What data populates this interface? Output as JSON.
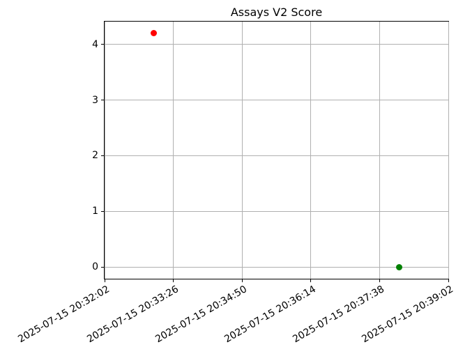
{
  "chart_data": {
    "type": "scatter",
    "title": "Assays V2 Score",
    "grid": true,
    "grid_color": "#b0b0b0",
    "background_color": "#ffffff",
    "xlim": [
      "2025-07-15 20:32:02",
      "2025-07-15 20:39:02"
    ],
    "ylim": [
      -0.21,
      4.41
    ],
    "x_tick_labels": [
      "2025-07-15 20:32:02",
      "2025-07-15 20:33:26",
      "2025-07-15 20:34:50",
      "2025-07-15 20:36:14",
      "2025-07-15 20:37:38",
      "2025-07-15 20:39:02"
    ],
    "x_tick_rotation_deg": 30,
    "y_tick_values": [
      0,
      1,
      2,
      3,
      4
    ],
    "y_tick_labels": [
      "0",
      "1",
      "2",
      "3",
      "4"
    ],
    "points": [
      {
        "name": "red-point",
        "x": "2025-07-15 20:33:02",
        "y": 4.2,
        "color": "#ff0000"
      },
      {
        "name": "green-point",
        "x": "2025-07-15 20:38:02",
        "y": 0.0,
        "color": "#008000"
      }
    ]
  }
}
